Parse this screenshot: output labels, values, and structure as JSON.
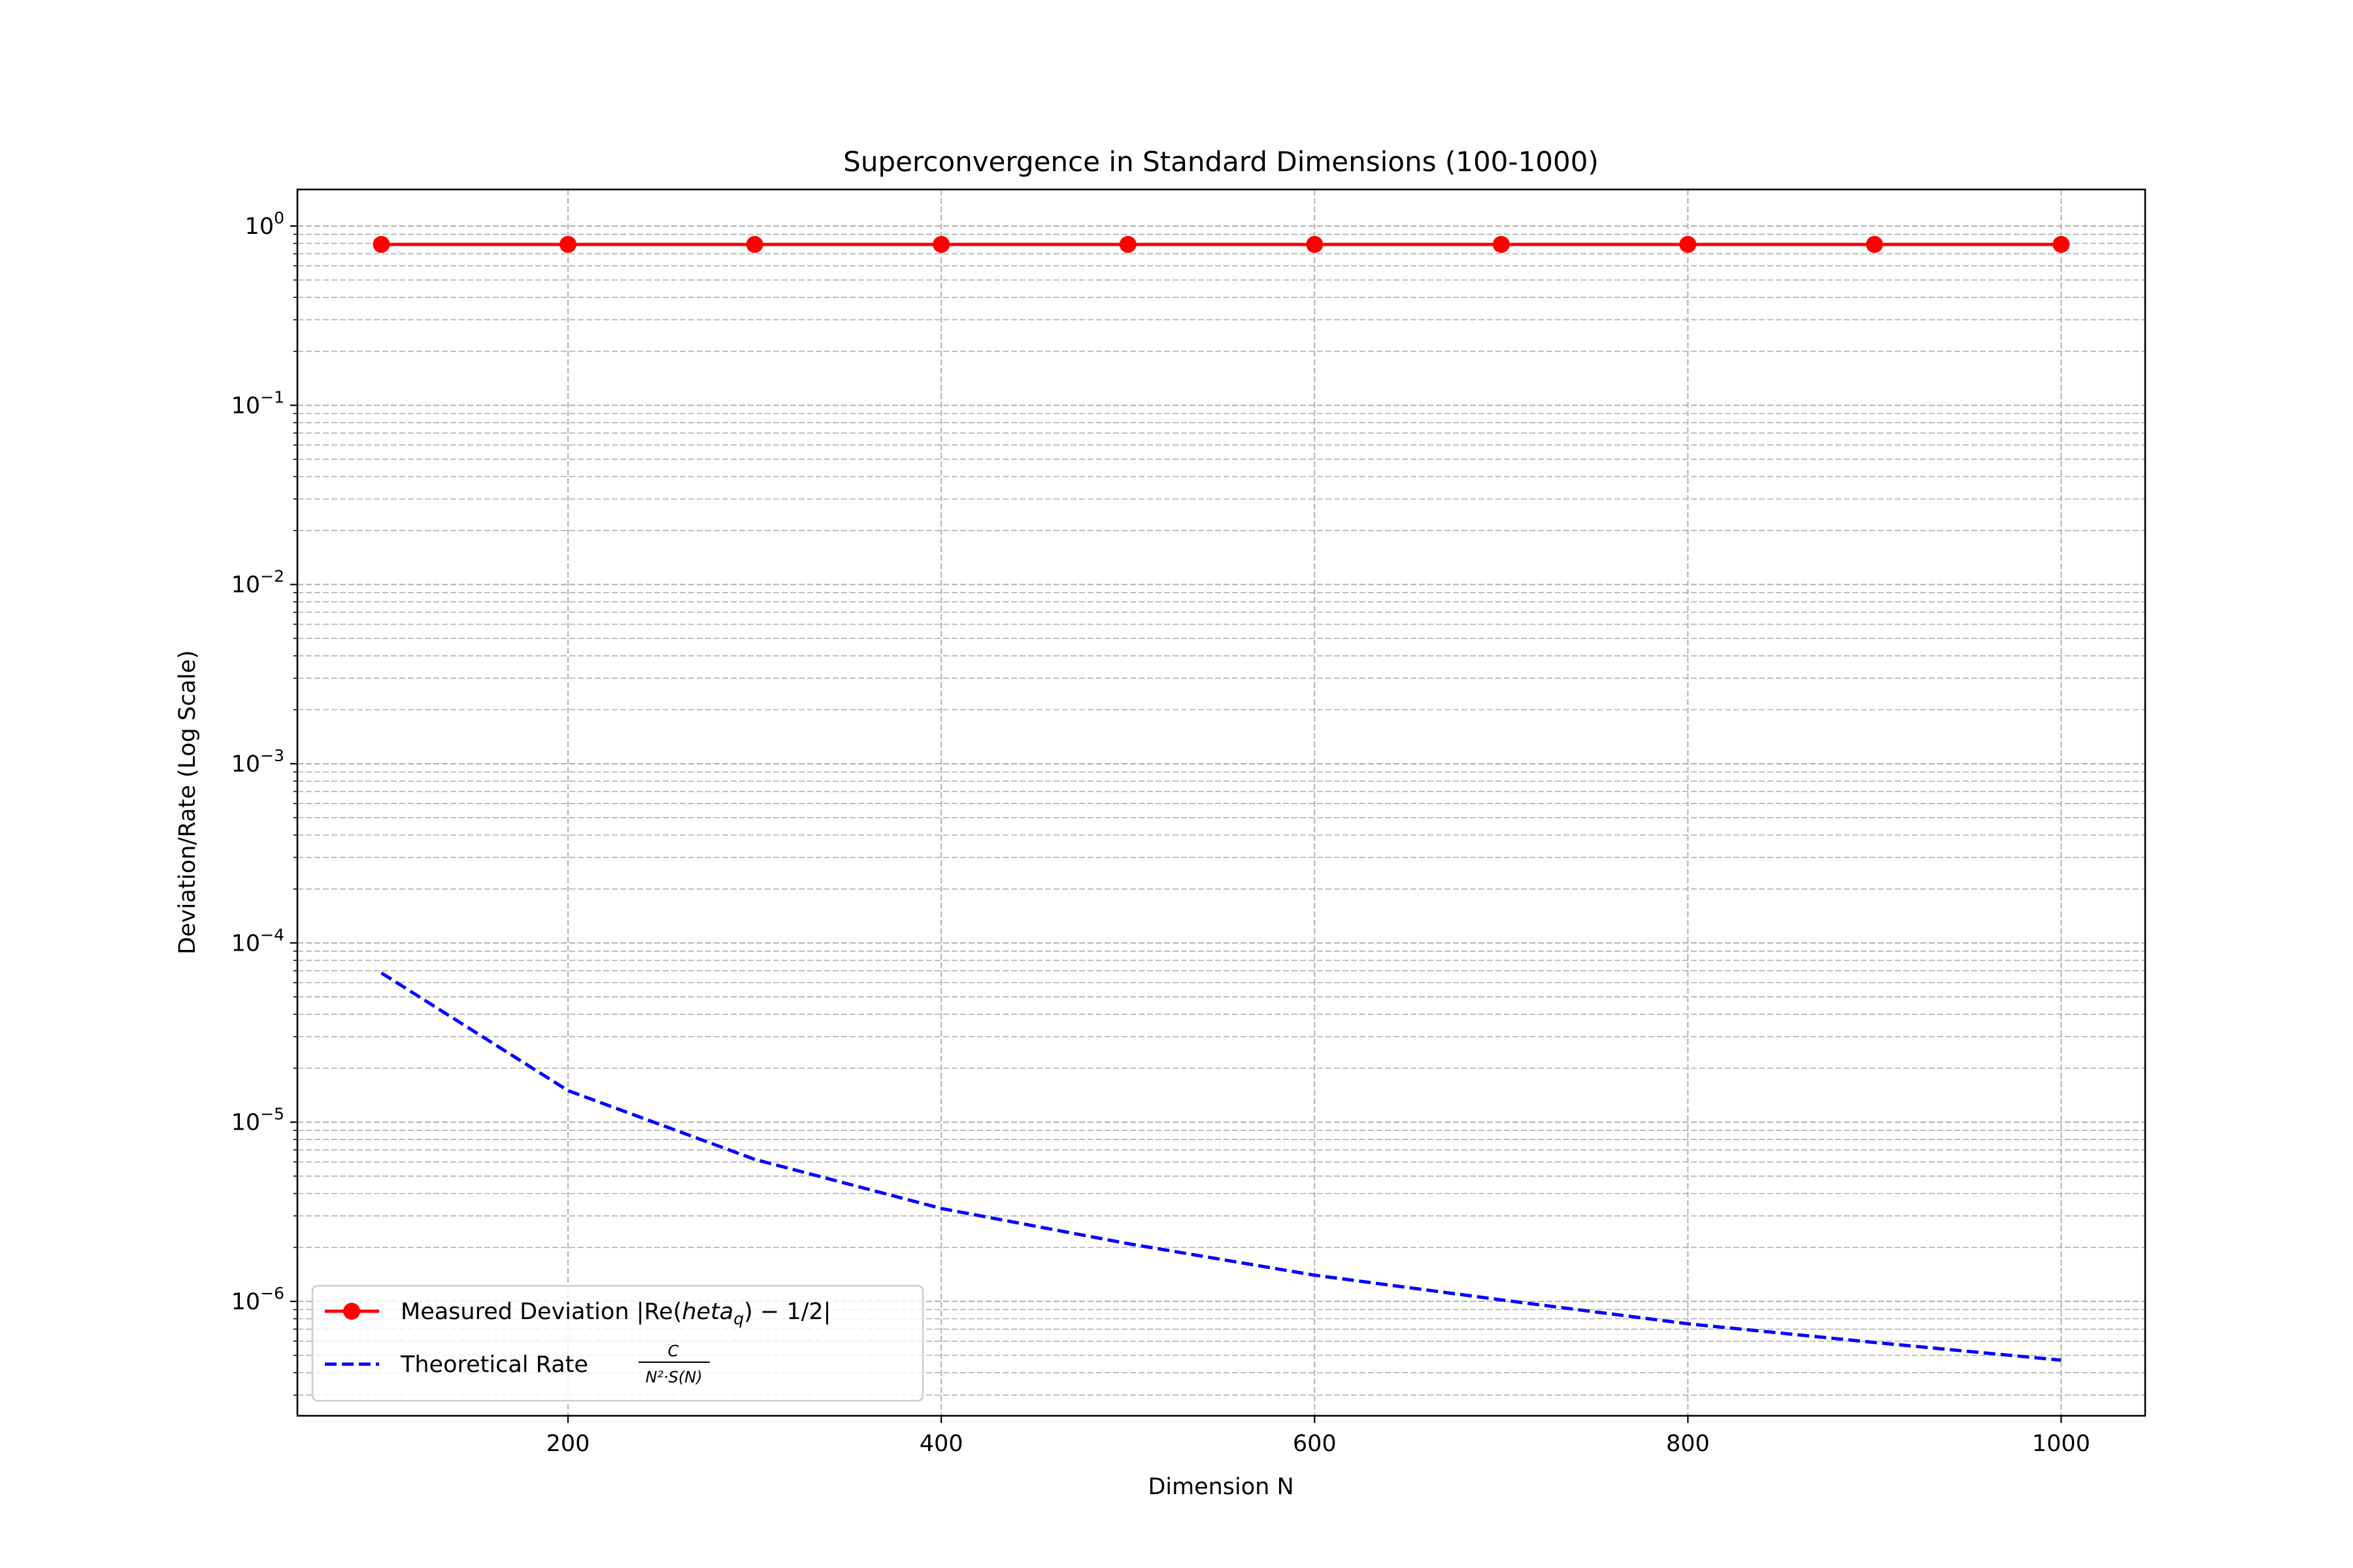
{
  "chart_data": {
    "type": "line",
    "title": "Superconvergence in Standard Dimensions (100-1000)",
    "xlabel": "Dimension N",
    "ylabel": "Deviation/Rate (Log Scale)",
    "xlim": [
      55,
      1045
    ],
    "ylim": [
      2.3e-07,
      1.6
    ],
    "yscale": "log",
    "grid": "on (dashed, x and y major + minor)",
    "legend_position": "lower-left",
    "x_ticks": [
      200,
      400,
      600,
      800,
      1000
    ],
    "x_tick_labels": [
      "200",
      "400",
      "600",
      "800",
      "1000"
    ],
    "y_ticks": [
      1e-06,
      1e-05,
      0.0001,
      0.001,
      0.01,
      0.1,
      1
    ],
    "y_tick_labels": [
      {
        "base": "10",
        "exp": "−6"
      },
      {
        "base": "10",
        "exp": "−5"
      },
      {
        "base": "10",
        "exp": "−4"
      },
      {
        "base": "10",
        "exp": "−3"
      },
      {
        "base": "10",
        "exp": "−2"
      },
      {
        "base": "10",
        "exp": "−1"
      },
      {
        "base": "10",
        "exp": "0"
      }
    ],
    "x": [
      100,
      200,
      300,
      400,
      500,
      600,
      700,
      800,
      900,
      1000
    ],
    "series": [
      {
        "name": "Measured Deviation |Re(heta_q) − 1/2|",
        "legend_parts": {
          "pre": "Measured Deviation |Re(",
          "italic": "heta",
          "sub": "q",
          "post": ") − 1/2|"
        },
        "style": "solid-with-markers",
        "color": "#ff0000",
        "values": [
          0.79,
          0.79,
          0.79,
          0.79,
          0.79,
          0.79,
          0.79,
          0.79,
          0.79,
          0.79
        ]
      },
      {
        "name": "Theoretical Rate C / (N²·S(N))",
        "legend_parts": {
          "pre": "Theoretical Rate",
          "num": "C",
          "den": "N²·S(N)"
        },
        "style": "dashed",
        "color": "#0000ff",
        "values": [
          6.8e-05,
          1.5e-05,
          6.2e-06,
          3.3e-06,
          2.1e-06,
          1.4e-06,
          1.02e-06,
          7.5e-07,
          5.9e-07,
          4.7e-07
        ]
      }
    ]
  }
}
